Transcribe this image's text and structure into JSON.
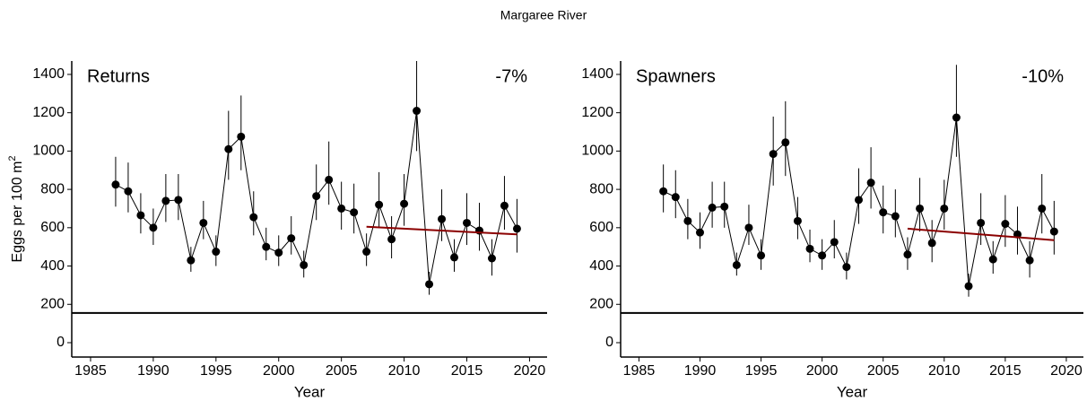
{
  "title": "Margaree River",
  "chart_data": [
    {
      "type": "line",
      "panel_label": "Returns",
      "annotation": "-7%",
      "xlabel": "Year",
      "ylabel": "Eggs per 100 m",
      "ylabel_sup": "2",
      "x": [
        1987,
        1988,
        1989,
        1990,
        1991,
        1992,
        1993,
        1994,
        1995,
        1996,
        1997,
        1998,
        1999,
        2000,
        2001,
        2002,
        2003,
        2004,
        2005,
        2006,
        2007,
        2008,
        2009,
        2010,
        2011,
        2012,
        2013,
        2014,
        2015,
        2016,
        2017,
        2018,
        2019
      ],
      "values": [
        825,
        790,
        665,
        600,
        740,
        745,
        430,
        625,
        475,
        1010,
        1075,
        655,
        500,
        470,
        545,
        405,
        765,
        850,
        700,
        680,
        475,
        720,
        540,
        725,
        1210,
        305,
        645,
        445,
        625,
        585,
        440,
        715,
        595
      ],
      "lower": [
        710,
        680,
        570,
        510,
        630,
        640,
        370,
        540,
        400,
        850,
        900,
        560,
        430,
        400,
        460,
        340,
        640,
        720,
        590,
        570,
        400,
        600,
        440,
        610,
        1000,
        250,
        530,
        370,
        510,
        480,
        350,
        590,
        470
      ],
      "upper": [
        970,
        940,
        780,
        700,
        880,
        880,
        500,
        740,
        560,
        1210,
        1290,
        790,
        600,
        560,
        660,
        480,
        930,
        1050,
        840,
        830,
        570,
        890,
        660,
        880,
        1470,
        370,
        800,
        540,
        780,
        730,
        540,
        870,
        750
      ],
      "color": "#000000",
      "trend": {
        "x": [
          2007,
          2019
        ],
        "values": [
          605,
          565
        ],
        "color": "#8b0000"
      },
      "hline": 155,
      "xlim": [
        1983.5,
        2021.4
      ],
      "ylim": [
        -75,
        1470
      ],
      "xticks": [
        1985,
        1990,
        1995,
        2000,
        2005,
        2010,
        2015,
        2020
      ],
      "yticks": [
        0,
        200,
        400,
        600,
        800,
        1000,
        1200,
        1400
      ]
    },
    {
      "type": "line",
      "panel_label": "Spawners",
      "annotation": "-10%",
      "xlabel": "Year",
      "x": [
        1987,
        1988,
        1989,
        1990,
        1991,
        1992,
        1993,
        1994,
        1995,
        1996,
        1997,
        1998,
        1999,
        2000,
        2001,
        2002,
        2003,
        2004,
        2005,
        2006,
        2007,
        2008,
        2009,
        2010,
        2011,
        2012,
        2013,
        2014,
        2015,
        2016,
        2017,
        2018,
        2019
      ],
      "values": [
        790,
        760,
        635,
        575,
        705,
        710,
        405,
        600,
        455,
        985,
        1045,
        635,
        490,
        455,
        525,
        395,
        745,
        835,
        680,
        660,
        460,
        700,
        520,
        700,
        1175,
        295,
        625,
        435,
        620,
        565,
        430,
        700,
        580
      ],
      "lower": [
        680,
        650,
        540,
        490,
        600,
        600,
        350,
        510,
        380,
        820,
        870,
        540,
        420,
        380,
        440,
        330,
        620,
        700,
        570,
        550,
        380,
        580,
        420,
        590,
        970,
        240,
        510,
        360,
        500,
        460,
        340,
        570,
        460
      ],
      "upper": [
        930,
        900,
        750,
        680,
        840,
        840,
        470,
        720,
        540,
        1180,
        1260,
        760,
        590,
        540,
        640,
        470,
        910,
        1020,
        820,
        800,
        550,
        860,
        640,
        850,
        1450,
        360,
        780,
        530,
        770,
        710,
        530,
        880,
        740
      ],
      "color": "#000000",
      "trend": {
        "x": [
          2007,
          2019
        ],
        "values": [
          595,
          535
        ],
        "color": "#8b0000"
      },
      "hline": 155,
      "xlim": [
        1983.5,
        2021.4
      ],
      "ylim": [
        -75,
        1470
      ],
      "xticks": [
        1985,
        1990,
        1995,
        2000,
        2005,
        2010,
        2015,
        2020
      ],
      "yticks": [
        0,
        200,
        400,
        600,
        800,
        1000,
        1200,
        1400
      ]
    }
  ]
}
